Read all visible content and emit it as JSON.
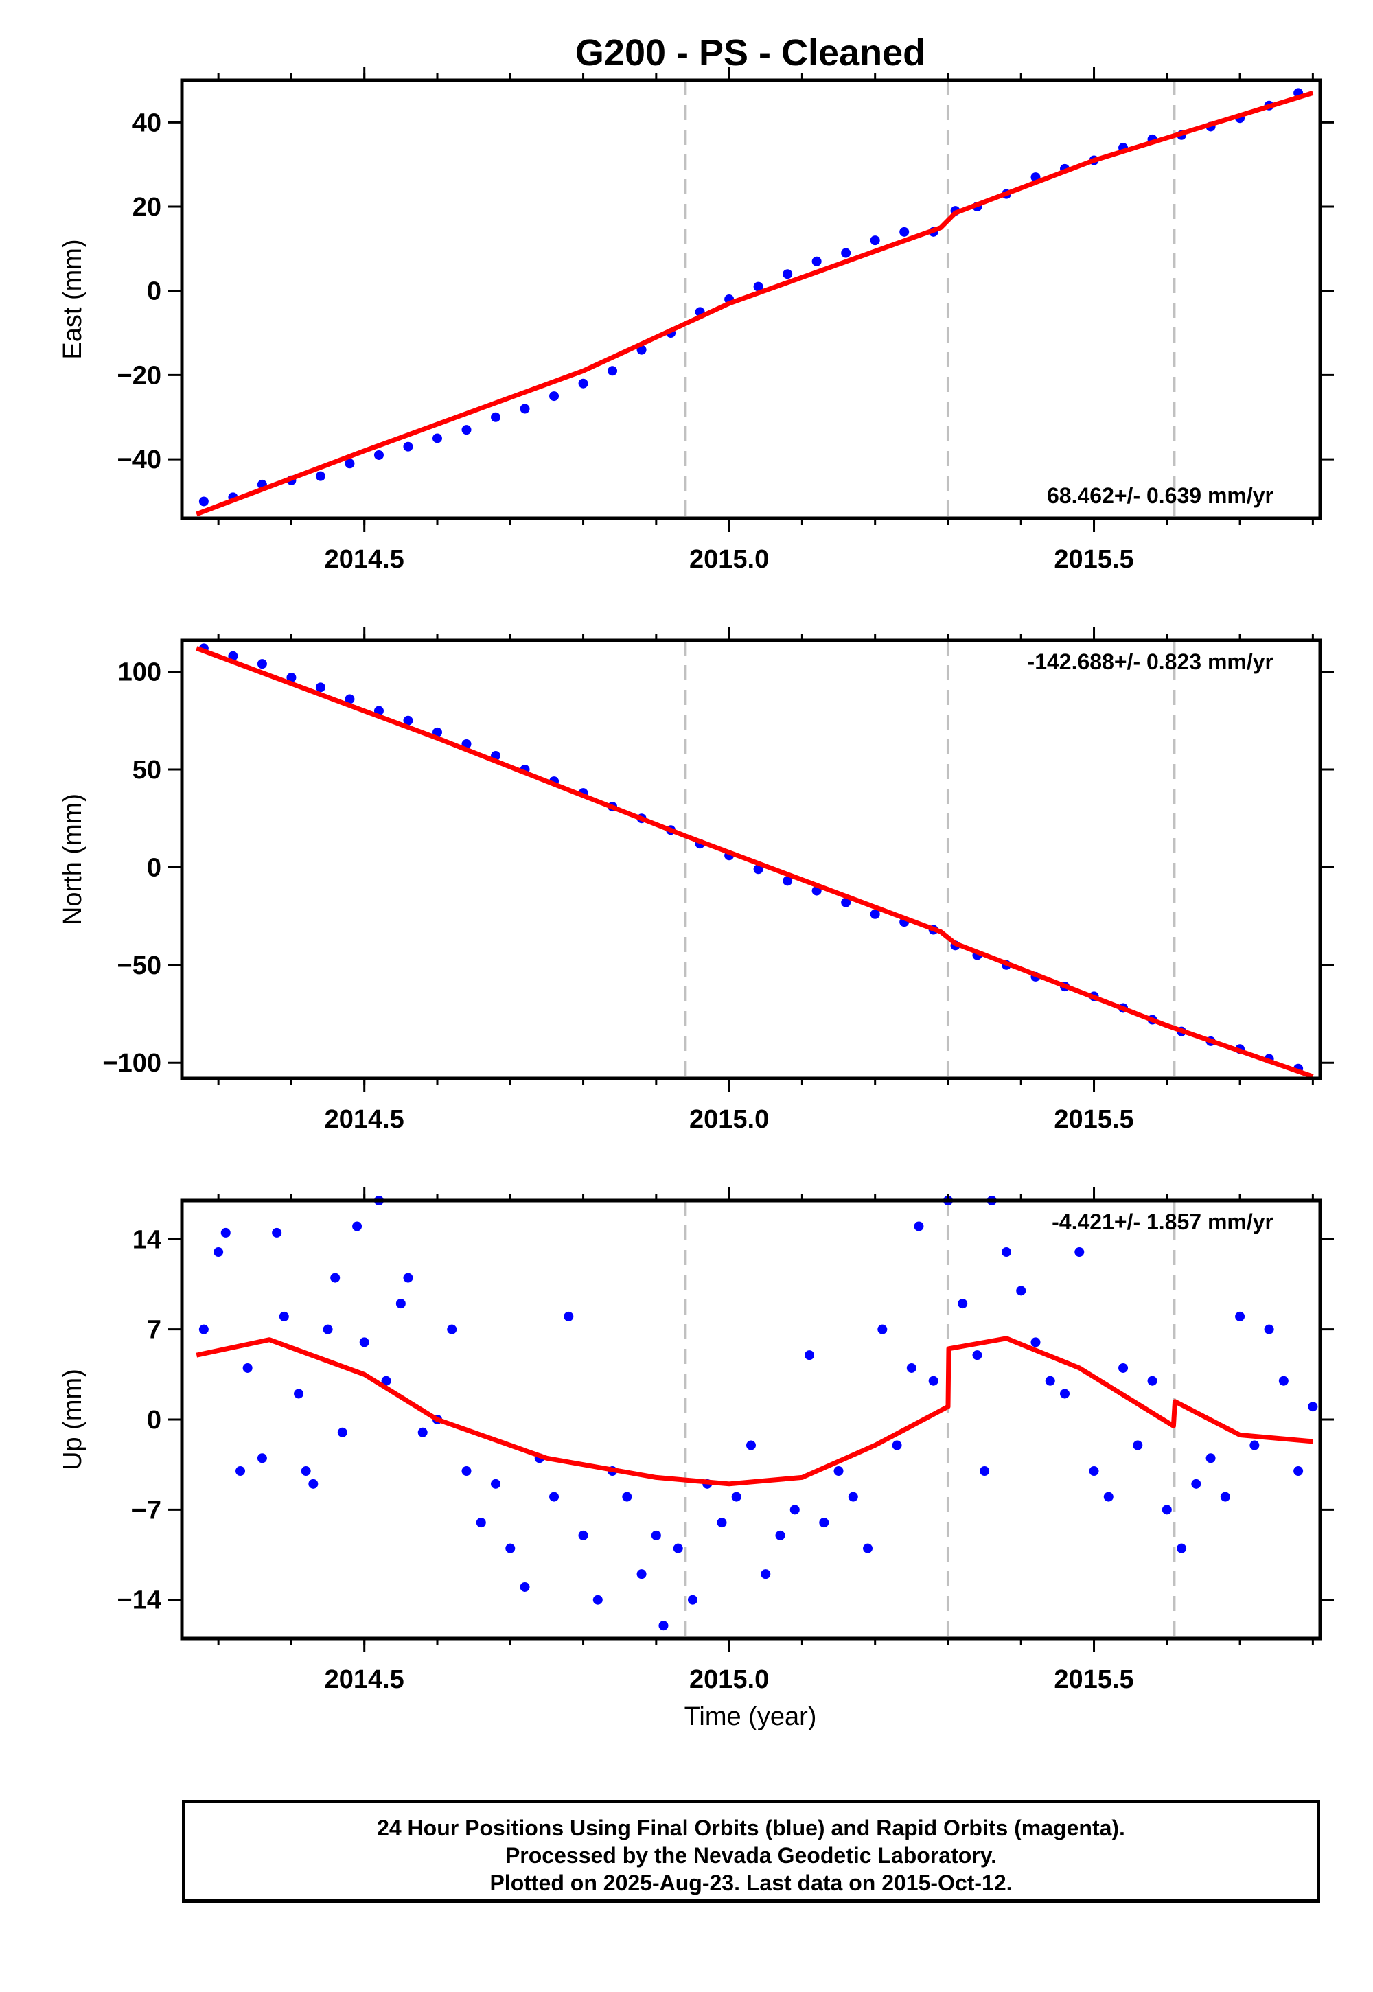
{
  "title": "G200  - PS - Cleaned",
  "xlabel": "Time (year)",
  "caption": [
    "24 Hour Positions Using Final Orbits (blue) and Rapid Orbits (magenta).",
    "Processed by the Nevada Geodetic Laboratory.",
    "Plotted on 2025-Aug-23. Last data on 2015-Oct-12."
  ],
  "colors": {
    "data": "#0000ff",
    "model": "#ff0000",
    "event_line": "#c0c0c0",
    "frame": "#000000"
  },
  "chart_data": [
    {
      "type": "scatter",
      "panel": "east",
      "ylabel": "East (mm)",
      "rate_label": "68.462+/- 0.639 mm/yr",
      "xlim": [
        2014.25,
        2015.81
      ],
      "ylim": [
        -54,
        50
      ],
      "xticks": [
        "2014.5",
        "2015.0",
        "2015.5"
      ],
      "yticks": [
        "40",
        "20",
        "0",
        "−20",
        "−40"
      ],
      "ytick_values": [
        40,
        20,
        0,
        -20,
        -40
      ],
      "event_lines": [
        2014.94,
        2015.3,
        2015.61
      ],
      "series": [
        {
          "points": [
            [
              2014.28,
              -50
            ],
            [
              2014.32,
              -49
            ],
            [
              2014.36,
              -46
            ],
            [
              2014.4,
              -45
            ],
            [
              2014.44,
              -44
            ],
            [
              2014.48,
              -41
            ],
            [
              2014.52,
              -39
            ],
            [
              2014.56,
              -37
            ],
            [
              2014.6,
              -35
            ],
            [
              2014.64,
              -33
            ],
            [
              2014.68,
              -30
            ],
            [
              2014.72,
              -28
            ],
            [
              2014.76,
              -25
            ],
            [
              2014.8,
              -22
            ],
            [
              2014.84,
              -19
            ],
            [
              2014.88,
              -14
            ],
            [
              2014.92,
              -10
            ],
            [
              2014.96,
              -5
            ],
            [
              2015.0,
              -2
            ],
            [
              2015.04,
              1
            ],
            [
              2015.08,
              4
            ],
            [
              2015.12,
              7
            ],
            [
              2015.16,
              9
            ],
            [
              2015.2,
              12
            ],
            [
              2015.24,
              14
            ],
            [
              2015.28,
              14
            ],
            [
              2015.31,
              19
            ],
            [
              2015.34,
              20
            ],
            [
              2015.38,
              23
            ],
            [
              2015.42,
              27
            ],
            [
              2015.46,
              29
            ],
            [
              2015.5,
              31
            ],
            [
              2015.54,
              34
            ],
            [
              2015.58,
              36
            ],
            [
              2015.62,
              37
            ],
            [
              2015.66,
              39
            ],
            [
              2015.7,
              41
            ],
            [
              2015.74,
              44
            ],
            [
              2015.78,
              47
            ]
          ]
        },
        {
          "model": [
            [
              2014.27,
              -53
            ],
            [
              2014.5,
              -38
            ],
            [
              2014.8,
              -19
            ],
            [
              2015.0,
              -3
            ],
            [
              2015.29,
              15
            ],
            [
              2015.31,
              18.5
            ],
            [
              2015.5,
              31
            ],
            [
              2015.8,
              47
            ]
          ]
        }
      ]
    },
    {
      "type": "scatter",
      "panel": "north",
      "ylabel": "North (mm)",
      "rate_label": "-142.688+/- 0.823 mm/yr",
      "xlim": [
        2014.25,
        2015.81
      ],
      "ylim": [
        -108,
        116
      ],
      "xticks": [
        "2014.5",
        "2015.0",
        "2015.5"
      ],
      "yticks": [
        "100",
        "50",
        "0",
        "−50",
        "−100"
      ],
      "ytick_values": [
        100,
        50,
        0,
        -50,
        -100
      ],
      "event_lines": [
        2014.94,
        2015.3,
        2015.61
      ],
      "series": [
        {
          "points": [
            [
              2014.28,
              112
            ],
            [
              2014.32,
              108
            ],
            [
              2014.36,
              104
            ],
            [
              2014.4,
              97
            ],
            [
              2014.44,
              92
            ],
            [
              2014.48,
              86
            ],
            [
              2014.52,
              80
            ],
            [
              2014.56,
              75
            ],
            [
              2014.6,
              69
            ],
            [
              2014.64,
              63
            ],
            [
              2014.68,
              57
            ],
            [
              2014.72,
              50
            ],
            [
              2014.76,
              44
            ],
            [
              2014.8,
              38
            ],
            [
              2014.84,
              31
            ],
            [
              2014.88,
              25
            ],
            [
              2014.92,
              19
            ],
            [
              2014.96,
              12
            ],
            [
              2015.0,
              6
            ],
            [
              2015.04,
              -1
            ],
            [
              2015.08,
              -7
            ],
            [
              2015.12,
              -12
            ],
            [
              2015.16,
              -18
            ],
            [
              2015.2,
              -24
            ],
            [
              2015.24,
              -28
            ],
            [
              2015.28,
              -32
            ],
            [
              2015.31,
              -40
            ],
            [
              2015.34,
              -45
            ],
            [
              2015.38,
              -50
            ],
            [
              2015.42,
              -56
            ],
            [
              2015.46,
              -61
            ],
            [
              2015.5,
              -66
            ],
            [
              2015.54,
              -72
            ],
            [
              2015.58,
              -78
            ],
            [
              2015.62,
              -84
            ],
            [
              2015.66,
              -89
            ],
            [
              2015.7,
              -93
            ],
            [
              2015.74,
              -98
            ],
            [
              2015.78,
              -103
            ]
          ]
        },
        {
          "model": [
            [
              2014.27,
              112
            ],
            [
              2014.6,
              66
            ],
            [
              2014.94,
              16
            ],
            [
              2015.29,
              -33
            ],
            [
              2015.31,
              -39
            ],
            [
              2015.6,
              -81
            ],
            [
              2015.8,
              -107
            ]
          ]
        }
      ]
    },
    {
      "type": "scatter",
      "panel": "up",
      "ylabel": "Up (mm)",
      "rate_label": "-4.421+/- 1.857 mm/yr",
      "xlim": [
        2014.25,
        2015.81
      ],
      "ylim": [
        -17,
        17
      ],
      "xticks": [
        "2014.5",
        "2015.0",
        "2015.5"
      ],
      "yticks": [
        "14",
        "7",
        "0",
        "−7",
        "−14"
      ],
      "ytick_values": [
        14,
        7,
        0,
        -7,
        -14
      ],
      "event_lines": [
        2014.94,
        2015.3,
        2015.61
      ],
      "series": [
        {
          "points": [
            [
              2014.28,
              7
            ],
            [
              2014.3,
              13
            ],
            [
              2014.31,
              14.5
            ],
            [
              2014.33,
              -4
            ],
            [
              2014.34,
              4
            ],
            [
              2014.36,
              -3
            ],
            [
              2014.38,
              14.5
            ],
            [
              2014.39,
              8
            ],
            [
              2014.41,
              2
            ],
            [
              2014.42,
              -4
            ],
            [
              2014.43,
              -5
            ],
            [
              2014.45,
              7
            ],
            [
              2014.46,
              11
            ],
            [
              2014.47,
              -1
            ],
            [
              2014.49,
              15
            ],
            [
              2014.5,
              6
            ],
            [
              2014.52,
              17
            ],
            [
              2014.53,
              3
            ],
            [
              2014.55,
              9
            ],
            [
              2014.56,
              11
            ],
            [
              2014.58,
              -1
            ],
            [
              2014.6,
              0
            ],
            [
              2014.62,
              7
            ],
            [
              2014.64,
              -4
            ],
            [
              2014.66,
              -8
            ],
            [
              2014.68,
              -5
            ],
            [
              2014.7,
              -10
            ],
            [
              2014.72,
              -13
            ],
            [
              2014.74,
              -3
            ],
            [
              2014.76,
              -6
            ],
            [
              2014.78,
              8
            ],
            [
              2014.8,
              -9
            ],
            [
              2014.82,
              -14
            ],
            [
              2014.84,
              -4
            ],
            [
              2014.86,
              -6
            ],
            [
              2014.88,
              -12
            ],
            [
              2014.9,
              -9
            ],
            [
              2014.91,
              -16
            ],
            [
              2014.93,
              -10
            ],
            [
              2014.95,
              -14
            ],
            [
              2014.97,
              -5
            ],
            [
              2014.99,
              -8
            ],
            [
              2015.01,
              -6
            ],
            [
              2015.03,
              -2
            ],
            [
              2015.05,
              -12
            ],
            [
              2015.07,
              -9
            ],
            [
              2015.09,
              -7
            ],
            [
              2015.11,
              5
            ],
            [
              2015.13,
              -8
            ],
            [
              2015.15,
              -4
            ],
            [
              2015.17,
              -6
            ],
            [
              2015.19,
              -10
            ],
            [
              2015.21,
              7
            ],
            [
              2015.23,
              -2
            ],
            [
              2015.25,
              4
            ],
            [
              2015.26,
              15
            ],
            [
              2015.28,
              3
            ],
            [
              2015.3,
              17
            ],
            [
              2015.32,
              9
            ],
            [
              2015.34,
              5
            ],
            [
              2015.35,
              -4
            ],
            [
              2015.36,
              17
            ],
            [
              2015.38,
              13
            ],
            [
              2015.4,
              10
            ],
            [
              2015.42,
              6
            ],
            [
              2015.44,
              3
            ],
            [
              2015.46,
              2
            ],
            [
              2015.48,
              13
            ],
            [
              2015.5,
              -4
            ],
            [
              2015.52,
              -6
            ],
            [
              2015.54,
              4
            ],
            [
              2015.56,
              -2
            ],
            [
              2015.58,
              3
            ],
            [
              2015.6,
              -7
            ],
            [
              2015.62,
              -10
            ],
            [
              2015.64,
              -5
            ],
            [
              2015.66,
              -3
            ],
            [
              2015.68,
              -6
            ],
            [
              2015.7,
              8
            ],
            [
              2015.72,
              -2
            ],
            [
              2015.74,
              7
            ],
            [
              2015.76,
              3
            ],
            [
              2015.78,
              -4
            ],
            [
              2015.8,
              1
            ]
          ]
        },
        {
          "model": [
            [
              2014.27,
              5
            ],
            [
              2014.37,
              6.2
            ],
            [
              2014.5,
              3.5
            ],
            [
              2014.6,
              0
            ],
            [
              2014.75,
              -3
            ],
            [
              2014.9,
              -4.5
            ],
            [
              2015.0,
              -5
            ],
            [
              2015.1,
              -4.5
            ],
            [
              2015.2,
              -2
            ],
            [
              2015.3,
              1
            ],
            [
              2015.301,
              5.5
            ],
            [
              2015.38,
              6.3
            ],
            [
              2015.48,
              4
            ],
            [
              2015.609,
              -0.5
            ],
            [
              2015.611,
              1.4
            ],
            [
              2015.7,
              -1.2
            ],
            [
              2015.8,
              -1.7
            ]
          ]
        }
      ]
    }
  ]
}
